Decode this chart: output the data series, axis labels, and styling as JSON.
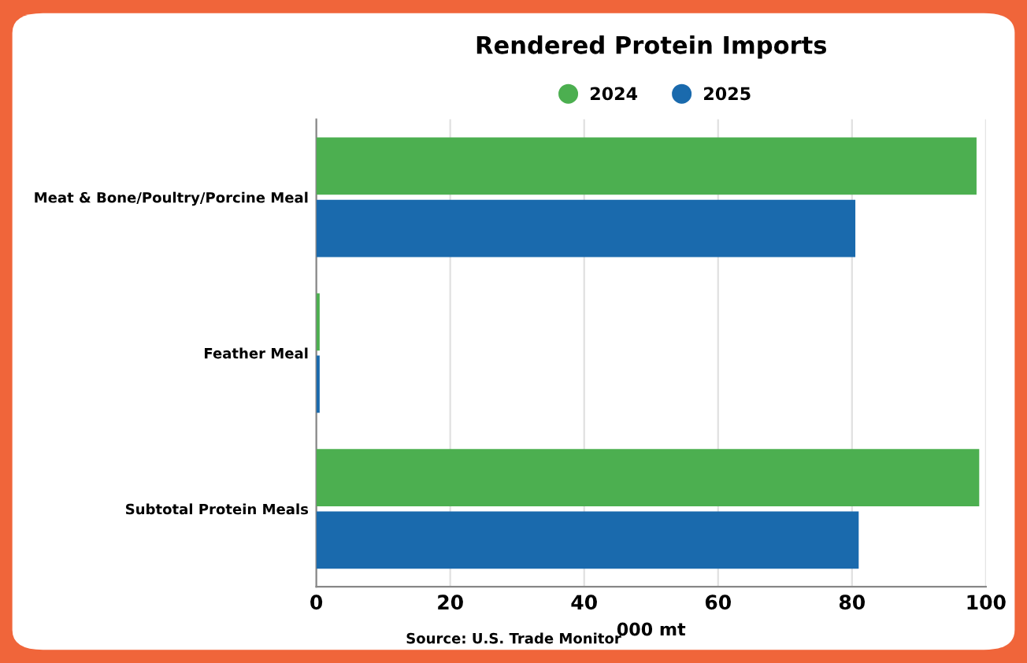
{
  "chart_data": {
    "type": "bar",
    "orientation": "horizontal",
    "title": "Rendered Protein Imports",
    "xlabel": "000 mt",
    "categories": [
      "Meat & Bone/Poultry/Porcine Meal",
      "Feather Meal",
      "Subtotal Protein Meals"
    ],
    "series": [
      {
        "name": "2024",
        "color": "#4caf50",
        "values": [
          98.6,
          0.5,
          99
        ]
      },
      {
        "name": "2025",
        "color": "#1a6aad",
        "values": [
          80.5,
          0.5,
          81
        ]
      }
    ],
    "xlim": [
      0,
      100
    ],
    "xticks": [
      0,
      20,
      40,
      60,
      80,
      100
    ],
    "grid": "x",
    "legend": "top",
    "annotations": [
      "Source: U.S. Trade Monitor"
    ]
  }
}
